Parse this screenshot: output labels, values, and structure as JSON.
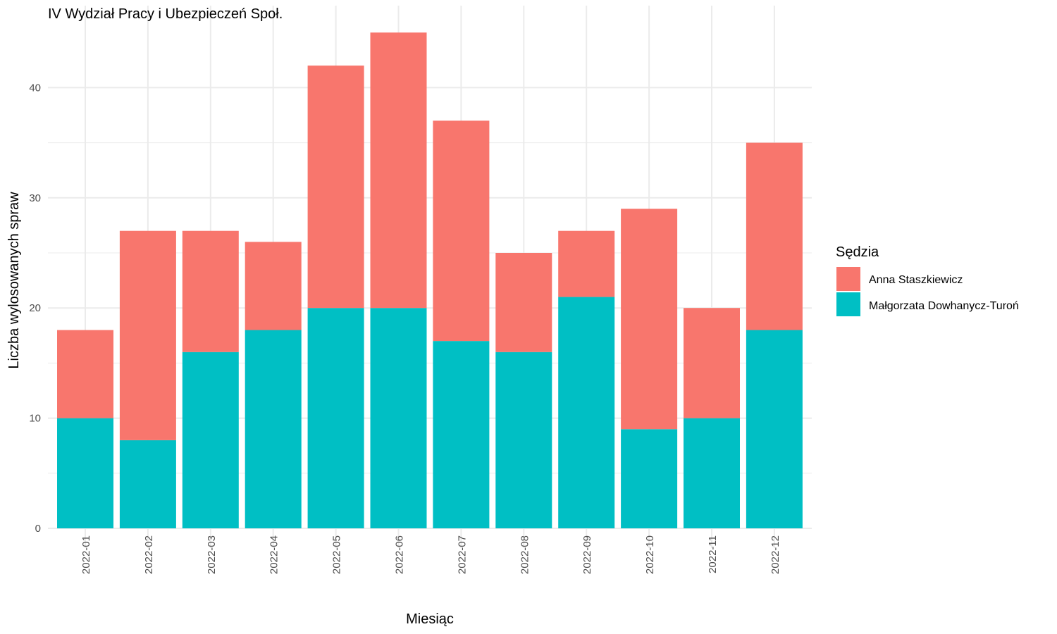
{
  "chart_data": {
    "type": "bar",
    "stacked": true,
    "title": "IV Wydział Pracy i Ubezpieczeń Społ.",
    "xlabel": "Miesiąc",
    "ylabel": "Liczba wylosowanych spraw",
    "categories": [
      "2022-01",
      "2022-02",
      "2022-03",
      "2022-04",
      "2022-05",
      "2022-06",
      "2022-07",
      "2022-08",
      "2022-09",
      "2022-10",
      "2022-11",
      "2022-12"
    ],
    "series": [
      {
        "name": "Małgorzata Dowhanycz-Turoń",
        "color": "#00BFC4",
        "values": [
          10,
          8,
          16,
          18,
          20,
          20,
          17,
          16,
          21,
          9,
          10,
          18
        ]
      },
      {
        "name": "Anna Staszkiewicz",
        "color": "#F8766D",
        "values": [
          8,
          19,
          11,
          8,
          22,
          25,
          20,
          9,
          6,
          20,
          10,
          17
        ]
      }
    ],
    "ylim": [
      0,
      45
    ],
    "yticks": [
      0,
      10,
      20,
      30,
      40
    ],
    "grid": true,
    "legend": {
      "title": "Sędzia",
      "position": "right",
      "entries": [
        "Anna Staszkiewicz",
        "Małgorzata Dowhanycz-Turoń"
      ]
    }
  }
}
